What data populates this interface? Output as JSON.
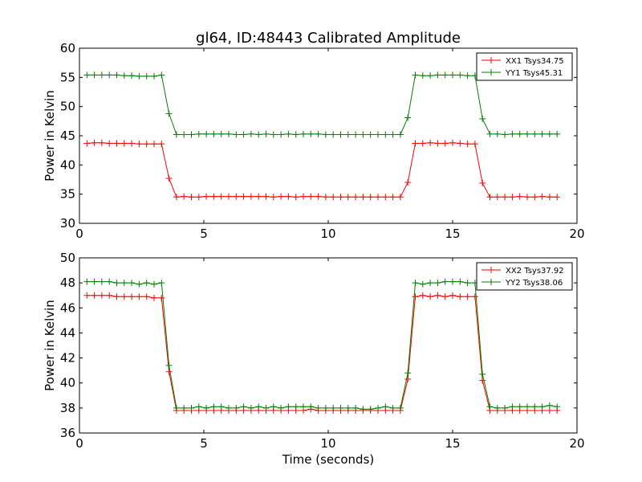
{
  "figure": {
    "title": "gl64, ID:48443 Calibrated Amplitude",
    "xlabel": "Time (seconds)"
  },
  "chart_data": [
    {
      "type": "line",
      "title": "gl64, ID:48443 Calibrated Amplitude",
      "xlabel": "",
      "ylabel": "Power in Kelvin",
      "xlim": [
        0,
        20
      ],
      "ylim": [
        30,
        60
      ],
      "xticks": [
        0,
        5,
        10,
        15,
        20
      ],
      "yticks": [
        30,
        35,
        40,
        45,
        50,
        55,
        60
      ],
      "grid": false,
      "legend_position": "top-right",
      "x": [
        0.3,
        0.6,
        0.9,
        1.2,
        1.5,
        1.8,
        2.1,
        2.4,
        2.7,
        3.0,
        3.3,
        3.6,
        3.9,
        4.2,
        4.5,
        4.8,
        5.1,
        5.4,
        5.7,
        6.0,
        6.3,
        6.6,
        6.9,
        7.2,
        7.5,
        7.8,
        8.1,
        8.4,
        8.7,
        9.0,
        9.3,
        9.6,
        9.9,
        10.2,
        10.5,
        10.8,
        11.1,
        11.4,
        11.7,
        12.0,
        12.3,
        12.6,
        12.9,
        13.2,
        13.5,
        13.8,
        14.1,
        14.4,
        14.7,
        15.0,
        15.3,
        15.6,
        15.9,
        16.2,
        16.5,
        16.8,
        17.1,
        17.4,
        17.7,
        18.0,
        18.3,
        18.6,
        18.9,
        19.2
      ],
      "series": [
        {
          "name": "XX1 Tsys34.75",
          "color": "#ff0000",
          "values": [
            43.7,
            43.8,
            43.8,
            43.7,
            43.7,
            43.7,
            43.7,
            43.6,
            43.6,
            43.6,
            43.6,
            37.7,
            34.5,
            34.6,
            34.5,
            34.5,
            34.6,
            34.6,
            34.6,
            34.6,
            34.6,
            34.6,
            34.6,
            34.6,
            34.6,
            34.5,
            34.6,
            34.6,
            34.5,
            34.6,
            34.6,
            34.6,
            34.5,
            34.5,
            34.5,
            34.5,
            34.5,
            34.5,
            34.5,
            34.5,
            34.5,
            34.5,
            34.5,
            37.0,
            43.7,
            43.7,
            43.8,
            43.7,
            43.7,
            43.8,
            43.7,
            43.6,
            43.6,
            36.9,
            34.5,
            34.5,
            34.5,
            34.5,
            34.6,
            34.5,
            34.5,
            34.6,
            34.5,
            34.5
          ]
        },
        {
          "name": "YY1 Tsys45.31",
          "color": "#008000",
          "values": [
            55.4,
            55.4,
            55.4,
            55.4,
            55.4,
            55.3,
            55.3,
            55.2,
            55.2,
            55.2,
            55.4,
            48.8,
            45.2,
            45.2,
            45.2,
            45.3,
            45.3,
            45.3,
            45.3,
            45.3,
            45.2,
            45.2,
            45.3,
            45.2,
            45.3,
            45.2,
            45.2,
            45.3,
            45.2,
            45.3,
            45.3,
            45.3,
            45.2,
            45.2,
            45.2,
            45.2,
            45.2,
            45.2,
            45.2,
            45.2,
            45.2,
            45.2,
            45.2,
            48.1,
            55.4,
            55.3,
            55.3,
            55.4,
            55.4,
            55.4,
            55.4,
            55.3,
            55.3,
            47.9,
            45.3,
            45.3,
            45.2,
            45.3,
            45.3,
            45.3,
            45.3,
            45.3,
            45.3,
            45.3
          ]
        }
      ]
    },
    {
      "type": "line",
      "title": "",
      "xlabel": "Time (seconds)",
      "ylabel": "Power in Kelvin",
      "xlim": [
        0,
        20
      ],
      "ylim": [
        36,
        50
      ],
      "xticks": [
        0,
        5,
        10,
        15,
        20
      ],
      "yticks": [
        36,
        38,
        40,
        42,
        44,
        46,
        48,
        50
      ],
      "grid": false,
      "legend_position": "top-right",
      "x": [
        0.3,
        0.6,
        0.9,
        1.2,
        1.5,
        1.8,
        2.1,
        2.4,
        2.7,
        3.0,
        3.3,
        3.6,
        3.9,
        4.2,
        4.5,
        4.8,
        5.1,
        5.4,
        5.7,
        6.0,
        6.3,
        6.6,
        6.9,
        7.2,
        7.5,
        7.8,
        8.1,
        8.4,
        8.7,
        9.0,
        9.3,
        9.6,
        9.9,
        10.2,
        10.5,
        10.8,
        11.1,
        11.4,
        11.7,
        12.0,
        12.3,
        12.6,
        12.9,
        13.2,
        13.5,
        13.8,
        14.1,
        14.4,
        14.7,
        15.0,
        15.3,
        15.6,
        15.9,
        16.2,
        16.5,
        16.8,
        17.1,
        17.4,
        17.7,
        18.0,
        18.3,
        18.6,
        18.9,
        19.2
      ],
      "series": [
        {
          "name": "XX2 Tsys37.92",
          "color": "#ff0000",
          "values": [
            47.0,
            47.0,
            47.0,
            47.0,
            46.9,
            46.9,
            46.9,
            46.9,
            46.9,
            46.8,
            46.8,
            40.9,
            37.8,
            37.8,
            37.8,
            37.8,
            37.8,
            37.8,
            37.8,
            37.8,
            37.8,
            37.8,
            37.8,
            37.8,
            37.8,
            37.8,
            37.8,
            37.8,
            37.8,
            37.8,
            37.9,
            37.8,
            37.8,
            37.8,
            37.8,
            37.8,
            37.8,
            37.8,
            37.8,
            37.8,
            37.8,
            37.8,
            37.8,
            40.3,
            46.9,
            47.0,
            46.9,
            47.0,
            46.9,
            47.0,
            46.9,
            46.9,
            46.9,
            40.2,
            37.8,
            37.8,
            37.8,
            37.8,
            37.8,
            37.8,
            37.8,
            37.8,
            37.8,
            37.8
          ]
        },
        {
          "name": "YY2 Tsys38.06",
          "color": "#008000",
          "values": [
            48.1,
            48.1,
            48.1,
            48.1,
            48.0,
            48.0,
            48.0,
            47.9,
            48.0,
            47.9,
            48.0,
            41.4,
            38.0,
            38.0,
            38.0,
            38.1,
            38.0,
            38.1,
            38.1,
            38.0,
            38.0,
            38.1,
            38.0,
            38.1,
            38.0,
            38.1,
            38.0,
            38.1,
            38.1,
            38.1,
            38.1,
            38.0,
            38.0,
            38.0,
            38.0,
            38.0,
            38.0,
            37.9,
            37.9,
            38.0,
            38.1,
            38.0,
            38.0,
            40.8,
            48.0,
            47.9,
            48.0,
            48.0,
            48.1,
            48.1,
            48.1,
            48.0,
            48.0,
            40.7,
            38.1,
            38.0,
            38.0,
            38.1,
            38.1,
            38.1,
            38.1,
            38.1,
            38.2,
            38.1
          ]
        }
      ]
    }
  ]
}
